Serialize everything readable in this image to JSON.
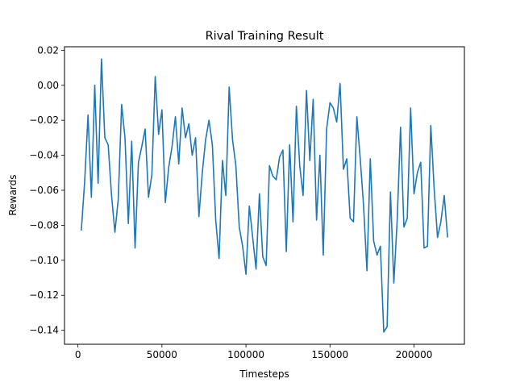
{
  "chart_data": {
    "type": "line",
    "title": "Rival Training Result",
    "xlabel": "Timesteps",
    "ylabel": "Rewards",
    "xlim": [
      -8000,
      230000
    ],
    "ylim": [
      -0.148,
      0.022
    ],
    "grid": false,
    "x_ticks": [
      0,
      50000,
      100000,
      150000,
      200000
    ],
    "x_tick_labels": [
      "0",
      "50000",
      "100000",
      "150000",
      "200000"
    ],
    "y_ticks": [
      -0.14,
      -0.12,
      -0.1,
      -0.08,
      -0.06,
      -0.04,
      -0.02,
      0.0,
      0.02
    ],
    "y_tick_labels": [
      "−0.14",
      "−0.12",
      "−0.10",
      "−0.08",
      "−0.06",
      "−0.04",
      "−0.02",
      "0.00",
      "0.02"
    ],
    "series": [
      {
        "color": "#1f77b4",
        "x": [
          2000,
          4000,
          6000,
          8000,
          10000,
          12000,
          14000,
          16000,
          18000,
          20000,
          22000,
          24000,
          26000,
          28000,
          30000,
          32000,
          34000,
          36000,
          38000,
          40000,
          42000,
          44000,
          46000,
          48000,
          50000,
          52000,
          54000,
          56000,
          58000,
          60000,
          62000,
          64000,
          66000,
          68000,
          70000,
          72000,
          74000,
          76000,
          78000,
          80000,
          82000,
          84000,
          86000,
          88000,
          90000,
          92000,
          94000,
          96000,
          98000,
          100000,
          102000,
          104000,
          106000,
          108000,
          110000,
          112000,
          114000,
          116000,
          118000,
          120000,
          122000,
          124000,
          126000,
          128000,
          130000,
          132000,
          134000,
          136000,
          138000,
          140000,
          142000,
          144000,
          146000,
          148000,
          150000,
          152000,
          154000,
          156000,
          158000,
          160000,
          162000,
          164000,
          166000,
          168000,
          170000,
          172000,
          174000,
          176000,
          178000,
          180000,
          182000,
          184000,
          186000,
          188000,
          190000,
          192000,
          194000,
          196000,
          198000,
          200000,
          202000,
          204000,
          206000,
          208000,
          210000,
          212000,
          214000,
          216000,
          218000,
          220000
        ],
        "y": [
          -0.083,
          -0.055,
          -0.017,
          -0.064,
          0.0,
          -0.056,
          0.015,
          -0.03,
          -0.034,
          -0.063,
          -0.084,
          -0.065,
          -0.011,
          -0.03,
          -0.079,
          -0.032,
          -0.093,
          -0.044,
          -0.035,
          -0.025,
          -0.064,
          -0.051,
          0.005,
          -0.028,
          -0.014,
          -0.067,
          -0.047,
          -0.035,
          -0.018,
          -0.045,
          -0.013,
          -0.03,
          -0.022,
          -0.04,
          -0.03,
          -0.075,
          -0.05,
          -0.031,
          -0.02,
          -0.034,
          -0.077,
          -0.099,
          -0.043,
          -0.063,
          -0.001,
          -0.031,
          -0.046,
          -0.081,
          -0.092,
          -0.108,
          -0.069,
          -0.087,
          -0.105,
          -0.062,
          -0.098,
          -0.103,
          -0.046,
          -0.052,
          -0.054,
          -0.041,
          -0.037,
          -0.095,
          -0.034,
          -0.078,
          -0.012,
          -0.046,
          -0.063,
          -0.003,
          -0.043,
          -0.008,
          -0.077,
          -0.04,
          -0.097,
          -0.025,
          -0.01,
          -0.013,
          -0.021,
          0.001,
          -0.048,
          -0.042,
          -0.076,
          -0.078,
          -0.018,
          -0.042,
          -0.069,
          -0.106,
          -0.042,
          -0.089,
          -0.097,
          -0.092,
          -0.141,
          -0.138,
          -0.061,
          -0.113,
          -0.077,
          -0.024,
          -0.081,
          -0.076,
          -0.013,
          -0.062,
          -0.05,
          -0.044,
          -0.093,
          -0.092,
          -0.023,
          -0.059,
          -0.087,
          -0.078,
          -0.063,
          -0.087
        ]
      }
    ]
  }
}
